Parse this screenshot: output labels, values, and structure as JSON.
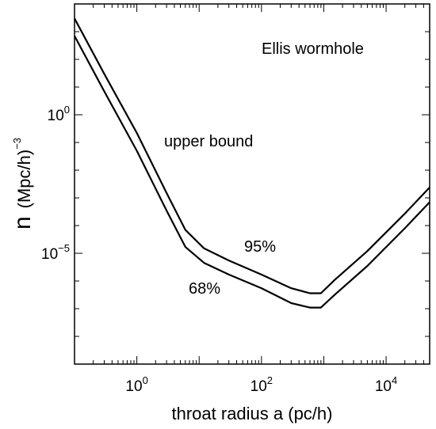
{
  "chart_data": {
    "type": "line",
    "title": "",
    "xlabel": "throat radius  a (pc/h)",
    "ylabel": {
      "main": "n",
      "unit": "(Mpc/h)",
      "exponent": "−3"
    },
    "xscale": "log",
    "yscale": "log",
    "xlim": [
      0.1,
      50000
    ],
    "ylim": [
      1e-09,
      10000.0
    ],
    "grid": false,
    "x_ticks": [
      {
        "value": 1,
        "base": "10",
        "exp": "0"
      },
      {
        "value": 100,
        "base": "10",
        "exp": "2"
      },
      {
        "value": 10000,
        "base": "10",
        "exp": "4"
      }
    ],
    "y_ticks": [
      {
        "value": 1,
        "base": "10",
        "exp": "0"
      },
      {
        "value": 1e-05,
        "base": "10",
        "exp": "−5"
      }
    ],
    "series": [
      {
        "name": "95%",
        "x": [
          0.1,
          0.3,
          1,
          3,
          6,
          12,
          30,
          100,
          300,
          600,
          900,
          1500,
          5000,
          20000,
          50000
        ],
        "y": [
          3000,
          30,
          0.22,
          0.0015,
          7e-05,
          1.5e-05,
          5.5e-06,
          1.7e-06,
          5.5e-07,
          3.6e-07,
          3.6e-07,
          1.1e-06,
          1.2e-05,
          0.00027,
          0.0024
        ]
      },
      {
        "name": "68%",
        "x": [
          0.1,
          0.3,
          1,
          3,
          6,
          12,
          30,
          100,
          300,
          600,
          900,
          1500,
          5000,
          20000,
          50000
        ],
        "y": [
          700,
          7,
          0.05,
          0.00035,
          1.7e-05,
          4.5e-06,
          1.7e-06,
          5.5e-07,
          1.6e-07,
          1.1e-07,
          1.1e-07,
          3.2e-07,
          3.5e-06,
          8e-05,
          0.0007
        ]
      }
    ],
    "annotations": {
      "title_in_plot": "Ellis wormhole",
      "upper_bound": "upper bound",
      "label_95": "95%",
      "label_68": "68%"
    }
  }
}
